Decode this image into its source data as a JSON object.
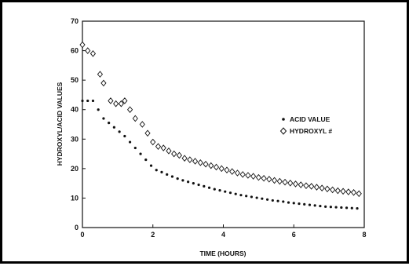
{
  "chart_data": {
    "type": "scatter",
    "title": "",
    "xlabel": "TIME (HOURS)",
    "ylabel": "HYDROXYL/ACID VALUES",
    "xlim": [
      0,
      8
    ],
    "ylim": [
      0,
      70
    ],
    "xticks": [
      "0",
      "2",
      "4",
      "6",
      "8"
    ],
    "yticks": [
      "0",
      "10",
      "20",
      "30",
      "40",
      "50",
      "60",
      "70"
    ],
    "grid": false,
    "legend_position": "right",
    "series": [
      {
        "name": "ACID VALUE",
        "marker": "dot",
        "x": [
          0.0,
          0.15,
          0.3,
          0.45,
          0.6,
          0.75,
          0.9,
          1.05,
          1.2,
          1.35,
          1.5,
          1.65,
          1.8,
          1.95,
          2.1,
          2.25,
          2.4,
          2.55,
          2.7,
          2.85,
          3.0,
          3.15,
          3.3,
          3.45,
          3.6,
          3.75,
          3.9,
          4.05,
          4.2,
          4.35,
          4.5,
          4.65,
          4.8,
          4.95,
          5.1,
          5.25,
          5.4,
          5.55,
          5.7,
          5.85,
          6.0,
          6.15,
          6.3,
          6.45,
          6.6,
          6.75,
          6.9,
          7.05,
          7.2,
          7.35,
          7.5,
          7.65,
          7.8
        ],
        "values": [
          43,
          43,
          43,
          40,
          37,
          35.5,
          34,
          32.5,
          31,
          29,
          27,
          25,
          23,
          21,
          19.5,
          18.8,
          18,
          17.3,
          16.6,
          16,
          15.5,
          15,
          14.5,
          14,
          13.5,
          13,
          12.6,
          12.2,
          11.8,
          11.4,
          11,
          10.7,
          10.4,
          10.1,
          9.8,
          9.5,
          9.2,
          9,
          8.8,
          8.5,
          8.3,
          8.1,
          7.9,
          7.7,
          7.5,
          7.3,
          7.1,
          7,
          6.9,
          6.8,
          6.7,
          6.6,
          6.5
        ]
      },
      {
        "name": "HYDROXYL #",
        "marker": "diamond",
        "x": [
          0.0,
          0.15,
          0.3,
          0.5,
          0.6,
          0.8,
          0.95,
          1.1,
          1.2,
          1.35,
          1.5,
          1.7,
          1.85,
          2.0,
          2.15,
          2.3,
          2.45,
          2.6,
          2.75,
          2.9,
          3.05,
          3.2,
          3.35,
          3.5,
          3.65,
          3.8,
          3.95,
          4.1,
          4.25,
          4.4,
          4.55,
          4.7,
          4.85,
          5.0,
          5.15,
          5.3,
          5.45,
          5.6,
          5.75,
          5.9,
          6.05,
          6.2,
          6.35,
          6.5,
          6.65,
          6.8,
          6.95,
          7.1,
          7.25,
          7.4,
          7.55,
          7.7,
          7.85
        ],
        "values": [
          62,
          60,
          59,
          52,
          49,
          43,
          42,
          42,
          43,
          40,
          37,
          35,
          32,
          29,
          27.5,
          27,
          26,
          25,
          24.5,
          23.5,
          23,
          22.5,
          22,
          21.5,
          21,
          20.5,
          20,
          19.5,
          19,
          18.5,
          18,
          17.7,
          17.4,
          17,
          16.7,
          16.4,
          16,
          15.7,
          15.4,
          15.1,
          14.8,
          14.5,
          14.2,
          14,
          13.7,
          13.4,
          13.1,
          12.8,
          12.5,
          12.3,
          12.1,
          11.9,
          11.5
        ]
      }
    ]
  }
}
